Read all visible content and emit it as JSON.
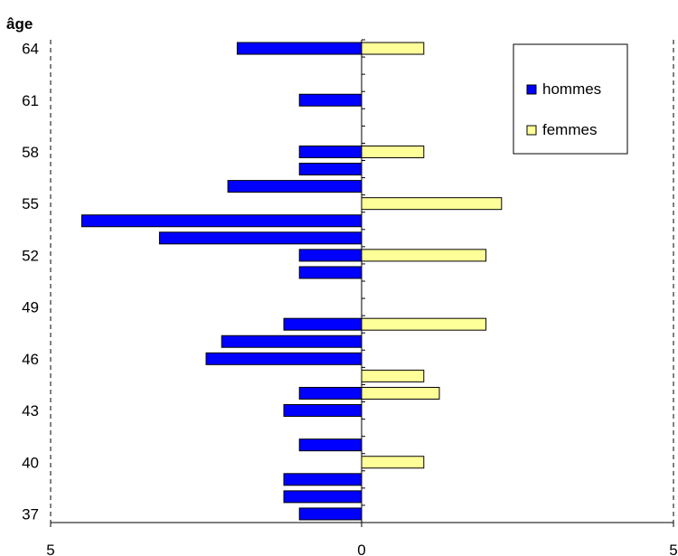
{
  "chart_data": {
    "type": "bar",
    "orientation": "horizontal",
    "ylabel": "âge",
    "xlim": [
      -5,
      5
    ],
    "x_tick_labels": [
      "5",
      "0",
      "5"
    ],
    "y_tick_labels": [
      "37",
      "40",
      "43",
      "46",
      "49",
      "52",
      "55",
      "58",
      "61",
      "64"
    ],
    "categories": [
      37,
      38,
      39,
      40,
      41,
      42,
      43,
      44,
      45,
      46,
      47,
      48,
      49,
      50,
      51,
      52,
      53,
      54,
      55,
      56,
      57,
      58,
      59,
      60,
      61,
      62,
      63,
      64
    ],
    "series": [
      {
        "name": "hommes",
        "color": "#0000ff",
        "values": [
          1,
          1.25,
          1.25,
          0,
          1,
          0,
          1.25,
          1,
          0,
          2.5,
          2.25,
          1.25,
          0,
          0,
          1,
          1,
          3.25,
          4.5,
          0,
          2.15,
          1,
          1,
          0,
          0,
          1,
          0,
          0,
          2
        ]
      },
      {
        "name": "femmes",
        "color": "#ffff99",
        "values": [
          0,
          0,
          0,
          1,
          0,
          0,
          0,
          1.25,
          1,
          0,
          0,
          2,
          0,
          0,
          0,
          2,
          0,
          0,
          2.25,
          0,
          0,
          1,
          0,
          0,
          0,
          0,
          0,
          1
        ]
      }
    ],
    "legend": [
      "hommes",
      "femmes"
    ],
    "legend_position": "top-right",
    "grid": false
  }
}
